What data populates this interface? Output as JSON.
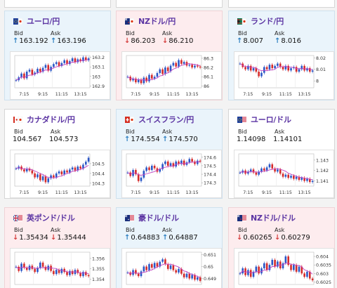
{
  "bid_label": "Bid",
  "ask_label": "Ask",
  "colors": {
    "up": "#2e7fc1",
    "down": "#d43c3c",
    "title": "#5c35a3",
    "ma": "#c040c0"
  },
  "cards": [
    {
      "name": "ユーロ/円",
      "flag": "eu-jp-flag-icon",
      "bid": "163.192",
      "ask": "163.196",
      "bid_dir": "up",
      "ask_dir": "up",
      "chart": {
        "ticks": [
          "163.2",
          "163.1",
          "163",
          "162.9"
        ],
        "ylim": [
          162.88,
          163.22
        ],
        "times": [
          "7:15",
          "9:15",
          "11:15",
          "13:15"
        ],
        "candles": [
          162.96,
          162.99,
          163.03,
          162.98,
          163.05,
          163.07,
          163.02,
          163.04,
          163.08,
          163.05,
          163.09,
          163.12,
          163.06,
          163.1,
          163.13,
          163.15,
          163.11,
          163.14,
          163.17,
          163.13,
          163.16,
          163.19,
          163.15,
          163.18,
          163.16,
          163.2,
          163.17,
          163.19
        ]
      }
    },
    {
      "name": "NZドル/円",
      "flag": "nz-jp-flag-icon",
      "bid": "86.203",
      "ask": "86.210",
      "bid_dir": "down",
      "ask_dir": "down",
      "chart": {
        "ticks": [
          "86.3",
          "86.2",
          "86.1",
          "86"
        ],
        "ylim": [
          85.98,
          86.33
        ],
        "times": [
          "7:15",
          "9:15",
          "11:15",
          "13:15"
        ],
        "candles": [
          86.1,
          86.06,
          86.08,
          86.04,
          86.07,
          86.03,
          86.09,
          86.05,
          86.12,
          86.08,
          86.1,
          86.14,
          86.18,
          86.13,
          86.2,
          86.16,
          86.22,
          86.25,
          86.21,
          86.28,
          86.24,
          86.26,
          86.22,
          86.23,
          86.2,
          86.22,
          86.21,
          86.2
        ]
      }
    },
    {
      "name": "ランド/円",
      "flag": "za-jp-flag-icon",
      "bid": "8.007",
      "ask": "8.016",
      "bid_dir": "up",
      "ask_dir": "up",
      "chart": {
        "ticks": [
          "8.02",
          "8.01",
          "8"
        ],
        "ylim": [
          7.994,
          8.022
        ],
        "times": [
          "7:15",
          "9:15",
          "11:15",
          "13:15"
        ],
        "candles": [
          8.015,
          8.012,
          8.01,
          8.013,
          8.009,
          8.011,
          8.008,
          8.004,
          8.007,
          8.012,
          8.01,
          8.014,
          8.011,
          8.013,
          8.015,
          8.012,
          8.01,
          8.013,
          8.009,
          8.011,
          8.012,
          8.008,
          8.01,
          8.013,
          8.009,
          8.011,
          8.008,
          8.009
        ]
      }
    },
    {
      "name": "カナダドル/円",
      "flag": "ca-jp-flag-icon",
      "bid": "104.567",
      "ask": "104.573",
      "bid_dir": "",
      "ask_dir": "",
      "chart": {
        "ticks": [
          "104.5",
          "104.4",
          "104.3"
        ],
        "ylim": [
          104.27,
          104.6
        ],
        "times": [
          "7:15",
          "9:15",
          "11:15",
          "13:15"
        ],
        "candles": [
          104.45,
          104.47,
          104.44,
          104.42,
          104.45,
          104.43,
          104.4,
          104.36,
          104.39,
          104.33,
          104.37,
          104.31,
          104.35,
          104.38,
          104.36,
          104.4,
          104.42,
          104.39,
          104.43,
          104.41,
          104.44,
          104.46,
          104.43,
          104.47,
          104.45,
          104.49,
          104.52,
          104.56
        ]
      }
    },
    {
      "name": "スイスフラン/円",
      "flag": "ch-jp-flag-icon",
      "bid": "174.554",
      "ask": "174.570",
      "bid_dir": "up",
      "ask_dir": "up",
      "chart": {
        "ticks": [
          "174.6",
          "174.5",
          "174.4",
          "174.3"
        ],
        "ylim": [
          174.26,
          174.64
        ],
        "times": [
          "7:15",
          "9:15",
          "11:15",
          "13:15"
        ],
        "candles": [
          174.42,
          174.38,
          174.45,
          174.4,
          174.32,
          174.36,
          174.44,
          174.48,
          174.45,
          174.5,
          174.47,
          174.43,
          174.46,
          174.52,
          174.55,
          174.5,
          174.53,
          174.49,
          174.55,
          174.52,
          174.56,
          174.51,
          174.54,
          174.58,
          174.55,
          174.52,
          174.56,
          174.55
        ]
      }
    },
    {
      "name": "ユーロ/ドル",
      "flag": "eu-us-flag-icon",
      "bid": "1.14098",
      "ask": "1.14101",
      "bid_dir": "",
      "ask_dir": "",
      "chart": {
        "ticks": [
          "1.143",
          "1.142",
          "1.141"
        ],
        "ylim": [
          1.1405,
          1.1436
        ],
        "times": [
          "7:15",
          "9:15",
          "11:15",
          "13:15"
        ],
        "candles": [
          1.1418,
          1.142,
          1.1417,
          1.1419,
          1.1421,
          1.1418,
          1.1416,
          1.1419,
          1.1422,
          1.142,
          1.1423,
          1.1426,
          1.1422,
          1.1419,
          1.1421,
          1.1417,
          1.1414,
          1.1416,
          1.1413,
          1.1415,
          1.1412,
          1.1414,
          1.1411,
          1.1413,
          1.141,
          1.1412,
          1.1409,
          1.141
        ]
      }
    },
    {
      "name": "英ポンド/ドル",
      "flag": "gb-us-flag-icon",
      "bid": "1.35434",
      "ask": "1.35444",
      "bid_dir": "down",
      "ask_dir": "down",
      "chart": {
        "ticks": [
          "1.356",
          "1.355",
          "1.354"
        ],
        "ylim": [
          1.3535,
          1.3566
        ],
        "times": [],
        "candles": [
          1.3552,
          1.3548,
          1.3555,
          1.3551,
          1.3549,
          1.3553,
          1.355,
          1.3547,
          1.3551,
          1.3556,
          1.3552,
          1.3549,
          1.3553,
          1.3548,
          1.3545,
          1.3549,
          1.3546,
          1.355,
          1.3547,
          1.3544,
          1.3548,
          1.3545,
          1.3549,
          1.3546,
          1.3543,
          1.3547,
          1.3544,
          1.3543
        ]
      }
    },
    {
      "name": "豪ドル/ドル",
      "flag": "au-us-flag-icon",
      "bid": "0.64883",
      "ask": "0.64887",
      "bid_dir": "up",
      "ask_dir": "up",
      "chart": {
        "ticks": [
          "0.651",
          "0.65",
          "0.649"
        ],
        "ylim": [
          0.6485,
          0.6512
        ],
        "times": [],
        "candles": [
          0.6495,
          0.6493,
          0.6497,
          0.6494,
          0.6492,
          0.6496,
          0.65,
          0.6497,
          0.6502,
          0.6499,
          0.6503,
          0.65,
          0.6504,
          0.6506,
          0.6502,
          0.6498,
          0.6501,
          0.6497,
          0.6495,
          0.6498,
          0.6494,
          0.6491,
          0.6494,
          0.649,
          0.6493,
          0.6489,
          0.6491,
          0.6488
        ]
      }
    },
    {
      "name": "NZドル/ドル",
      "flag": "nz-us-flag-icon",
      "bid": "0.60265",
      "ask": "0.60279",
      "bid_dir": "down",
      "ask_dir": "down",
      "chart": {
        "ticks": [
          "0.604",
          "0.6035",
          "0.603",
          "0.6025"
        ],
        "ylim": [
          0.60235,
          0.60425
        ],
        "times": [],
        "candles": [
          0.603,
          0.6033,
          0.6029,
          0.6032,
          0.6028,
          0.6031,
          0.6034,
          0.603,
          0.6033,
          0.6036,
          0.6032,
          0.6035,
          0.6038,
          0.6034,
          0.6037,
          0.6033,
          0.6036,
          0.604,
          0.6035,
          0.6032,
          0.6035,
          0.6031,
          0.6034,
          0.603,
          0.6028,
          0.6031,
          0.6027,
          0.6026
        ]
      }
    }
  ]
}
